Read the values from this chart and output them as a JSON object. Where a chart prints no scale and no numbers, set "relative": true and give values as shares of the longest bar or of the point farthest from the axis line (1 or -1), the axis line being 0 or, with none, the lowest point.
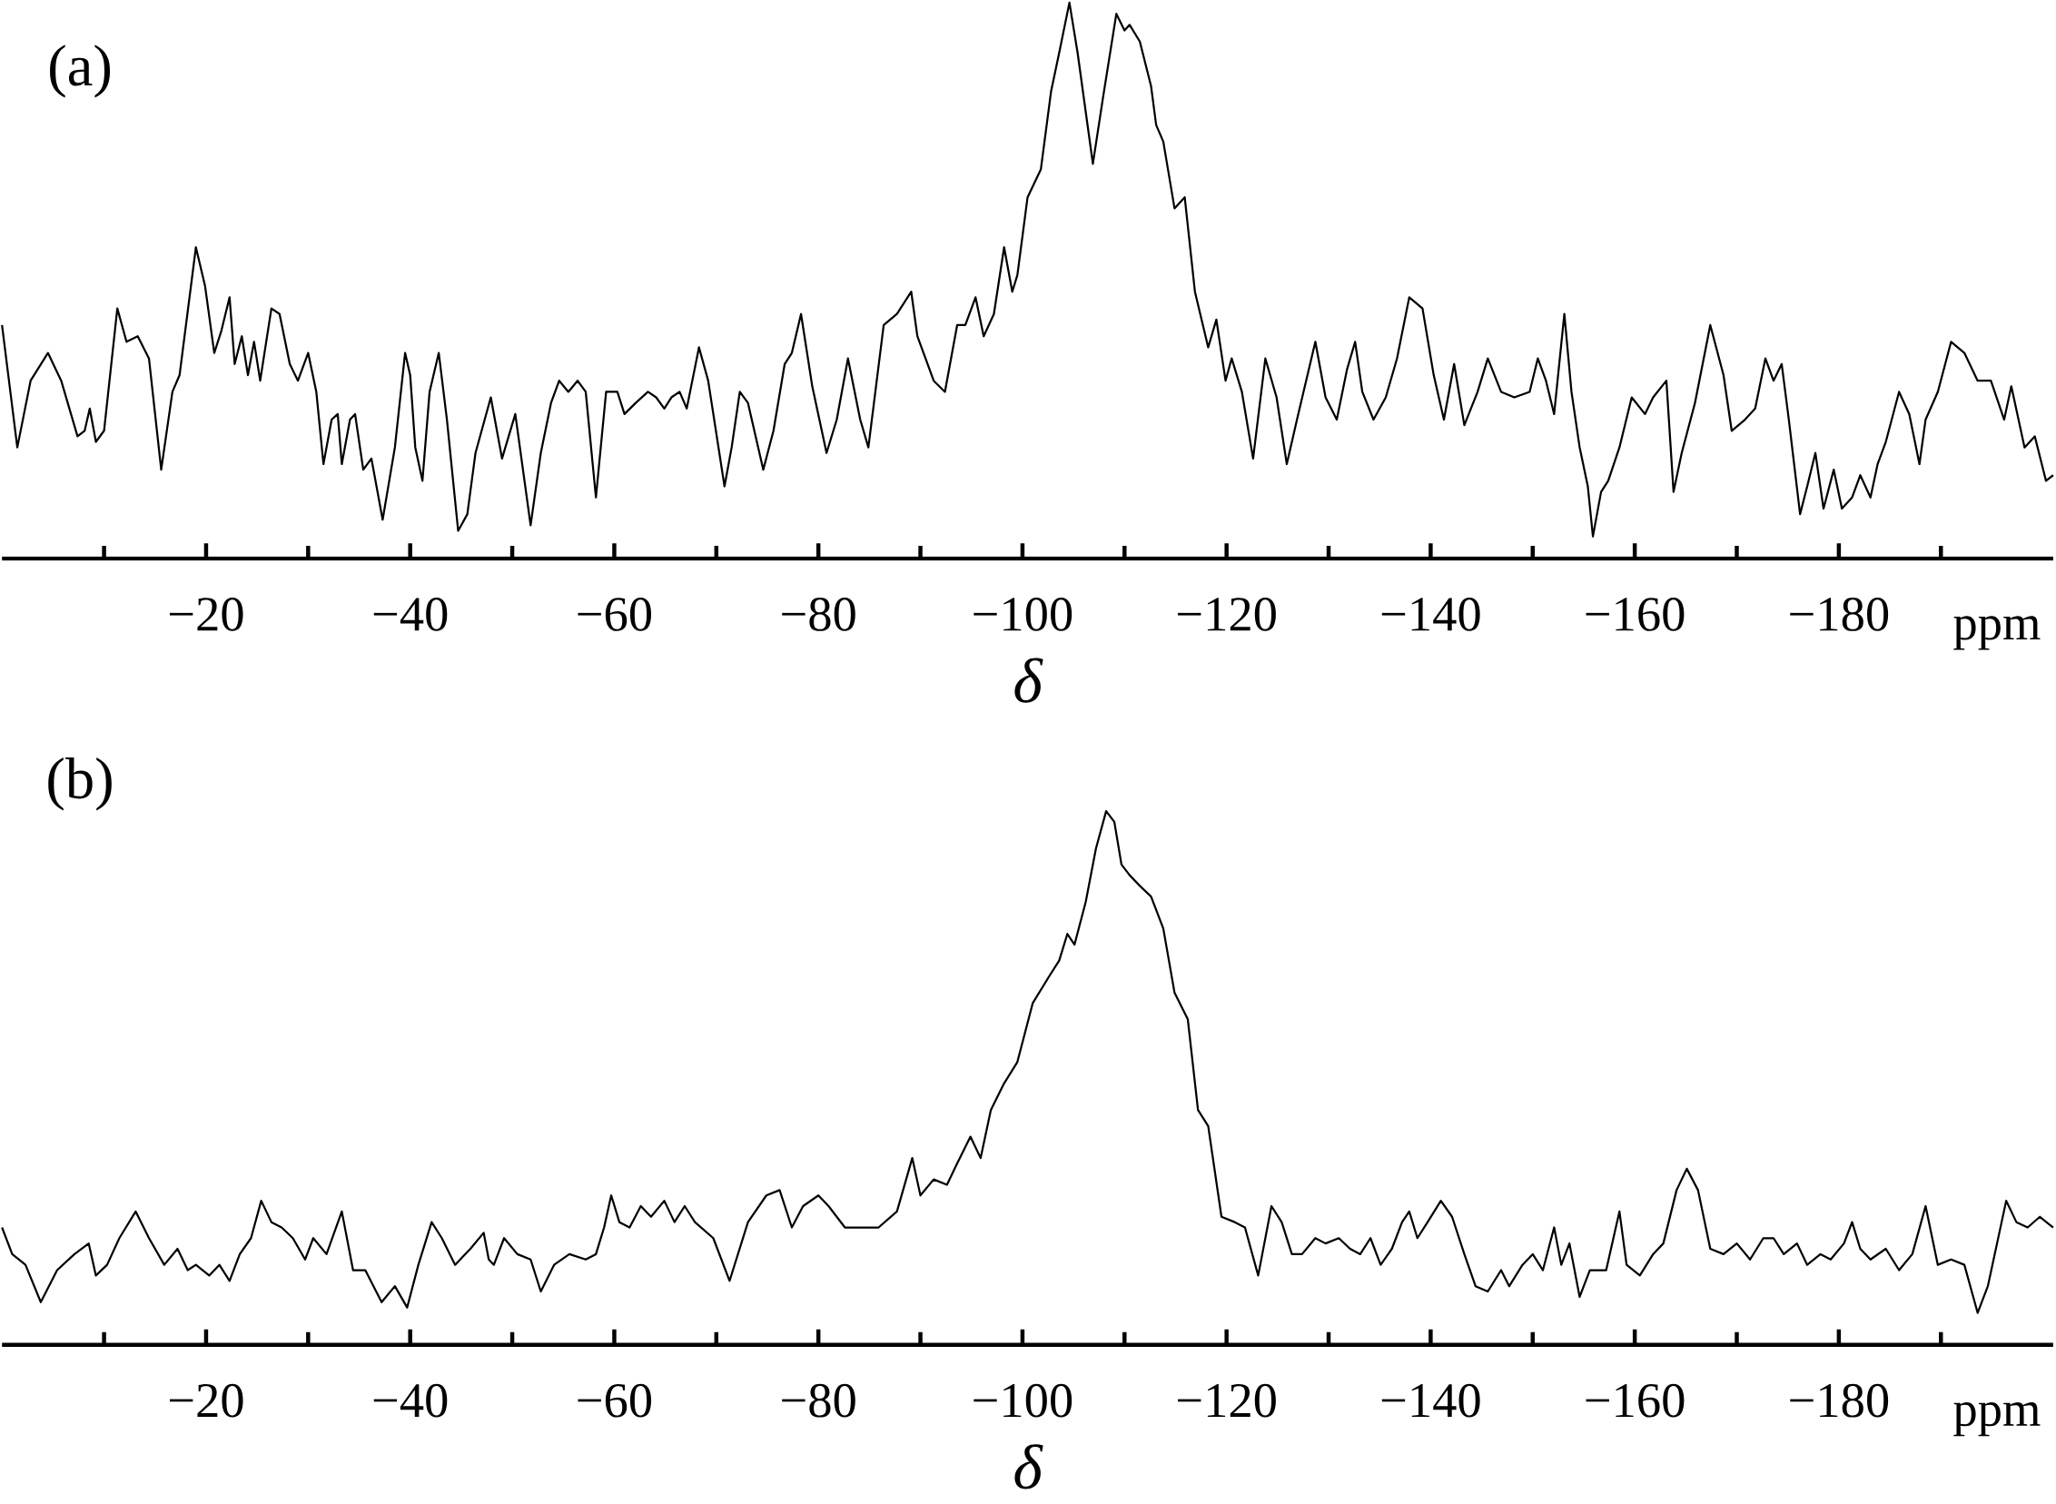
{
  "chart_data": [
    {
      "type": "line",
      "title": "(a)",
      "xlabel": "δ",
      "annotations": [
        "ppm"
      ],
      "relative": true,
      "marker": "none",
      "line_style": "solid",
      "xlim": [
        0,
        -201
      ],
      "xticks": [
        {
          "value": -10,
          "label": null
        },
        {
          "value": -20,
          "label": "−20"
        },
        {
          "value": -30,
          "label": null
        },
        {
          "value": -40,
          "label": "−40"
        },
        {
          "value": -50,
          "label": null
        },
        {
          "value": -60,
          "label": "−60"
        },
        {
          "value": -70,
          "label": null
        },
        {
          "value": -80,
          "label": "−80"
        },
        {
          "value": -90,
          "label": null
        },
        {
          "value": -100,
          "label": "−100"
        },
        {
          "value": -110,
          "label": null
        },
        {
          "value": -120,
          "label": "−120"
        },
        {
          "value": -130,
          "label": null
        },
        {
          "value": -140,
          "label": "−140"
        },
        {
          "value": -150,
          "label": null
        },
        {
          "value": -160,
          "label": "−160"
        },
        {
          "value": -170,
          "label": null
        },
        {
          "value": -180,
          "label": "−180"
        },
        {
          "value": -190,
          "label": null
        }
      ],
      "x": [
        0,
        -1.5,
        -2.8,
        -4.5,
        -5.8,
        -7.4,
        -8.1,
        -8.6,
        -9.2,
        -10.0,
        -11.3,
        -12.2,
        -13.3,
        -14.4,
        -15.6,
        -16.7,
        -17.4,
        -19.0,
        -19.9,
        -20.8,
        -21.5,
        -22.3,
        -22.8,
        -23.5,
        -24.1,
        -24.7,
        -25.3,
        -26.4,
        -27.2,
        -28.2,
        -29.0,
        -30.0,
        -30.8,
        -31.5,
        -32.3,
        -32.9,
        -33.3,
        -34.1,
        -34.6,
        -35.4,
        -36.2,
        -37.3,
        -38.5,
        -39.5,
        -40.0,
        -40.5,
        -41.2,
        -41.9,
        -42.8,
        -43.6,
        -44.7,
        -45.6,
        -46.4,
        -47.9,
        -49.0,
        -50.3,
        -51.8,
        -52.8,
        -53.8,
        -54.6,
        -55.5,
        -56.4,
        -57.2,
        -58.2,
        -59.2,
        -60.3,
        -61.0,
        -62.1,
        -63.3,
        -64.1,
        -64.9,
        -65.6,
        -66.4,
        -67.1,
        -68.3,
        -69.2,
        -70.8,
        -71.5,
        -72.3,
        -73.1,
        -74.6,
        -75.6,
        -76.7,
        -77.4,
        -78.3,
        -79.4,
        -80.8,
        -81.8,
        -82.9,
        -84.1,
        -84.9,
        -86.4,
        -87.7,
        -89.1,
        -89.7,
        -91.3,
        -92.4,
        -93.6,
        -94.4,
        -95.4,
        -96.2,
        -97.2,
        -98.2,
        -99.0,
        -99.5,
        -100.5,
        -101.8,
        -102.8,
        -103.6,
        -104.6,
        -105.4,
        -106.9,
        -107.9,
        -109.2,
        -110.0,
        -110.5,
        -111.5,
        -112.6,
        -113.1,
        -113.8,
        -114.9,
        -115.9,
        -116.9,
        -118.2,
        -119.0,
        -119.9,
        -120.5,
        -121.5,
        -122.6,
        -123.8,
        -124.9,
        -125.9,
        -126.9,
        -128.7,
        -129.7,
        -130.8,
        -131.8,
        -132.6,
        -133.3,
        -134.4,
        -135.6,
        -136.7,
        -137.9,
        -139.2,
        -140.3,
        -141.3,
        -142.3,
        -143.3,
        -144.6,
        -145.6,
        -146.9,
        -148.2,
        -149.7,
        -150.5,
        -151.3,
        -152.1,
        -153.1,
        -153.8,
        -154.6,
        -155.4,
        -155.9,
        -156.7,
        -157.4,
        -158.5,
        -159.7,
        -161.0,
        -161.8,
        -163.1,
        -163.8,
        -164.6,
        -165.9,
        -167.4,
        -168.7,
        -169.5,
        -170.8,
        -171.8,
        -172.8,
        -173.6,
        -174.4,
        -175.1,
        -176.2,
        -176.9,
        -177.7,
        -178.5,
        -179.5,
        -180.3,
        -181.3,
        -182.1,
        -183.1,
        -183.8,
        -184.6,
        -185.9,
        -186.9,
        -187.9,
        -188.5,
        -189.7,
        -191.0,
        -192.3,
        -193.6,
        -194.9,
        -196.2,
        -196.9,
        -198.2,
        -199.2,
        -200.3,
        -201.0
      ],
      "series": [
        {
          "color": "#000000",
          "values": [
            0.42,
            0.2,
            0.32,
            0.37,
            0.32,
            0.22,
            0.23,
            0.27,
            0.21,
            0.23,
            0.45,
            0.39,
            0.4,
            0.36,
            0.16,
            0.3,
            0.33,
            0.56,
            0.49,
            0.37,
            0.41,
            0.47,
            0.35,
            0.4,
            0.33,
            0.39,
            0.32,
            0.45,
            0.44,
            0.35,
            0.32,
            0.37,
            0.3,
            0.17,
            0.25,
            0.26,
            0.17,
            0.25,
            0.26,
            0.16,
            0.18,
            0.07,
            0.2,
            0.37,
            0.33,
            0.2,
            0.14,
            0.3,
            0.37,
            0.25,
            0.05,
            0.08,
            0.19,
            0.29,
            0.18,
            0.26,
            0.06,
            0.19,
            0.28,
            0.32,
            0.3,
            0.32,
            0.3,
            0.11,
            0.3,
            0.3,
            0.26,
            0.28,
            0.3,
            0.29,
            0.27,
            0.29,
            0.3,
            0.27,
            0.38,
            0.32,
            0.13,
            0.2,
            0.3,
            0.28,
            0.16,
            0.23,
            0.35,
            0.37,
            0.44,
            0.31,
            0.19,
            0.25,
            0.36,
            0.25,
            0.2,
            0.42,
            0.44,
            0.48,
            0.4,
            0.32,
            0.3,
            0.42,
            0.42,
            0.47,
            0.4,
            0.44,
            0.56,
            0.48,
            0.51,
            0.65,
            0.7,
            0.84,
            0.91,
            1,
            0.91,
            0.71,
            0.83,
            0.98,
            0.95,
            0.96,
            0.93,
            0.85,
            0.78,
            0.75,
            0.63,
            0.65,
            0.48,
            0.38,
            0.43,
            0.32,
            0.36,
            0.3,
            0.18,
            0.36,
            0.29,
            0.17,
            0.25,
            0.39,
            0.29,
            0.25,
            0.34,
            0.39,
            0.3,
            0.25,
            0.29,
            0.36,
            0.47,
            0.45,
            0.33,
            0.25,
            0.35,
            0.24,
            0.3,
            0.36,
            0.3,
            0.29,
            0.3,
            0.36,
            0.32,
            0.26,
            0.44,
            0.3,
            0.2,
            0.13,
            0.04,
            0.12,
            0.14,
            0.2,
            0.29,
            0.26,
            0.29,
            0.32,
            0.12,
            0.19,
            0.28,
            0.42,
            0.33,
            0.23,
            0.25,
            0.27,
            0.36,
            0.32,
            0.35,
            0.25,
            0.08,
            0.13,
            0.19,
            0.09,
            0.16,
            0.09,
            0.11,
            0.15,
            0.11,
            0.17,
            0.21,
            0.3,
            0.26,
            0.17,
            0.25,
            0.3,
            0.39,
            0.37,
            0.32,
            0.32,
            0.25,
            0.31,
            0.2,
            0.22,
            0.14,
            0.15
          ]
        }
      ]
    },
    {
      "type": "line",
      "title": "(b)",
      "xlabel": "δ",
      "annotations": [
        "ppm"
      ],
      "relative": true,
      "marker": "none",
      "line_style": "solid",
      "xlim": [
        0,
        -201
      ],
      "xticks": [
        {
          "value": -10,
          "label": null
        },
        {
          "value": -20,
          "label": "−20"
        },
        {
          "value": -30,
          "label": null
        },
        {
          "value": -40,
          "label": "−40"
        },
        {
          "value": -50,
          "label": null
        },
        {
          "value": -60,
          "label": "−60"
        },
        {
          "value": -70,
          "label": null
        },
        {
          "value": -80,
          "label": "−80"
        },
        {
          "value": -90,
          "label": null
        },
        {
          "value": -100,
          "label": "−100"
        },
        {
          "value": -110,
          "label": null
        },
        {
          "value": -120,
          "label": "−120"
        },
        {
          "value": -130,
          "label": null
        },
        {
          "value": -140,
          "label": "−140"
        },
        {
          "value": -150,
          "label": null
        },
        {
          "value": -160,
          "label": "−160"
        },
        {
          "value": -170,
          "label": null
        },
        {
          "value": -180,
          "label": "−180"
        },
        {
          "value": -190,
          "label": null
        }
      ],
      "x": [
        0,
        -1.0,
        -2.3,
        -3.8,
        -5.4,
        -7.1,
        -8.5,
        -9.2,
        -10.3,
        -11.5,
        -13.1,
        -14.4,
        -15.9,
        -17.2,
        -18.2,
        -19.0,
        -20.3,
        -21.3,
        -22.3,
        -23.3,
        -24.4,
        -25.4,
        -26.4,
        -27.4,
        -28.5,
        -29.7,
        -30.5,
        -31.8,
        -33.3,
        -34.4,
        -35.6,
        -37.2,
        -38.5,
        -39.7,
        -40.8,
        -42.1,
        -43.1,
        -44.4,
        -45.9,
        -47.2,
        -47.7,
        -48.2,
        -49.2,
        -50.5,
        -51.8,
        -52.8,
        -54.1,
        -55.6,
        -57.2,
        -58.2,
        -59.0,
        -59.7,
        -60.5,
        -61.5,
        -62.6,
        -63.6,
        -64.9,
        -65.9,
        -66.9,
        -67.9,
        -69.7,
        -71.3,
        -73.1,
        -74.9,
        -76.2,
        -77.4,
        -78.5,
        -80.0,
        -81.0,
        -82.6,
        -84.1,
        -85.9,
        -87.7,
        -89.2,
        -90.0,
        -91.3,
        -92.6,
        -93.6,
        -94.9,
        -95.9,
        -96.9,
        -98.2,
        -99.5,
        -101.0,
        -102.6,
        -103.6,
        -104.4,
        -105.1,
        -106.2,
        -107.2,
        -108.2,
        -109.0,
        -109.7,
        -110.5,
        -111.5,
        -112.6,
        -113.8,
        -114.9,
        -116.2,
        -117.2,
        -118.2,
        -119.5,
        -120.8,
        -121.8,
        -123.1,
        -124.4,
        -125.4,
        -126.4,
        -127.4,
        -128.7,
        -129.7,
        -131.0,
        -132.1,
        -133.1,
        -134.1,
        -135.1,
        -136.2,
        -137.2,
        -137.9,
        -138.7,
        -139.7,
        -141.0,
        -142.1,
        -143.3,
        -144.4,
        -145.6,
        -146.9,
        -147.7,
        -149.0,
        -150.0,
        -151.0,
        -152.1,
        -152.8,
        -153.6,
        -154.6,
        -155.6,
        -157.2,
        -158.5,
        -159.2,
        -160.5,
        -161.8,
        -162.8,
        -164.1,
        -165.1,
        -166.2,
        -167.4,
        -168.7,
        -170.0,
        -171.3,
        -172.6,
        -173.6,
        -174.6,
        -175.9,
        -176.9,
        -178.2,
        -179.2,
        -180.5,
        -181.3,
        -182.1,
        -183.1,
        -184.6,
        -185.9,
        -187.2,
        -188.5,
        -189.7,
        -191.0,
        -192.3,
        -193.6,
        -194.6,
        -196.4,
        -197.4,
        -198.5,
        -199.7,
        -201.0
      ],
      "series": [
        {
          "color": "#000000",
          "values": [
            0.22,
            0.17,
            0.15,
            0.08,
            0.14,
            0.17,
            0.19,
            0.13,
            0.15,
            0.2,
            0.25,
            0.2,
            0.15,
            0.18,
            0.14,
            0.15,
            0.13,
            0.15,
            0.12,
            0.17,
            0.2,
            0.27,
            0.23,
            0.22,
            0.2,
            0.16,
            0.2,
            0.17,
            0.25,
            0.14,
            0.14,
            0.08,
            0.11,
            0.07,
            0.15,
            0.23,
            0.2,
            0.15,
            0.18,
            0.21,
            0.16,
            0.15,
            0.2,
            0.17,
            0.16,
            0.1,
            0.15,
            0.17,
            0.16,
            0.17,
            0.22,
            0.28,
            0.23,
            0.22,
            0.26,
            0.24,
            0.27,
            0.23,
            0.26,
            0.23,
            0.2,
            0.12,
            0.23,
            0.28,
            0.29,
            0.22,
            0.26,
            0.28,
            0.26,
            0.22,
            0.22,
            0.22,
            0.25,
            0.35,
            0.28,
            0.31,
            0.3,
            0.34,
            0.39,
            0.35,
            0.44,
            0.49,
            0.53,
            0.64,
            0.69,
            0.72,
            0.77,
            0.75,
            0.83,
            0.93,
            1,
            0.98,
            0.9,
            0.88,
            0.86,
            0.84,
            0.78,
            0.66,
            0.61,
            0.44,
            0.41,
            0.24,
            0.23,
            0.22,
            0.13,
            0.26,
            0.23,
            0.17,
            0.17,
            0.2,
            0.19,
            0.2,
            0.18,
            0.17,
            0.2,
            0.15,
            0.18,
            0.23,
            0.25,
            0.2,
            0.23,
            0.27,
            0.24,
            0.17,
            0.11,
            0.1,
            0.14,
            0.11,
            0.15,
            0.17,
            0.14,
            0.22,
            0.15,
            0.19,
            0.09,
            0.14,
            0.14,
            0.25,
            0.15,
            0.13,
            0.17,
            0.19,
            0.29,
            0.33,
            0.29,
            0.18,
            0.17,
            0.19,
            0.16,
            0.2,
            0.2,
            0.17,
            0.19,
            0.15,
            0.17,
            0.16,
            0.19,
            0.23,
            0.18,
            0.16,
            0.18,
            0.14,
            0.17,
            0.26,
            0.15,
            0.16,
            0.15,
            0.06,
            0.11,
            0.27,
            0.23,
            0.22,
            0.24,
            0.22
          ]
        }
      ]
    }
  ]
}
